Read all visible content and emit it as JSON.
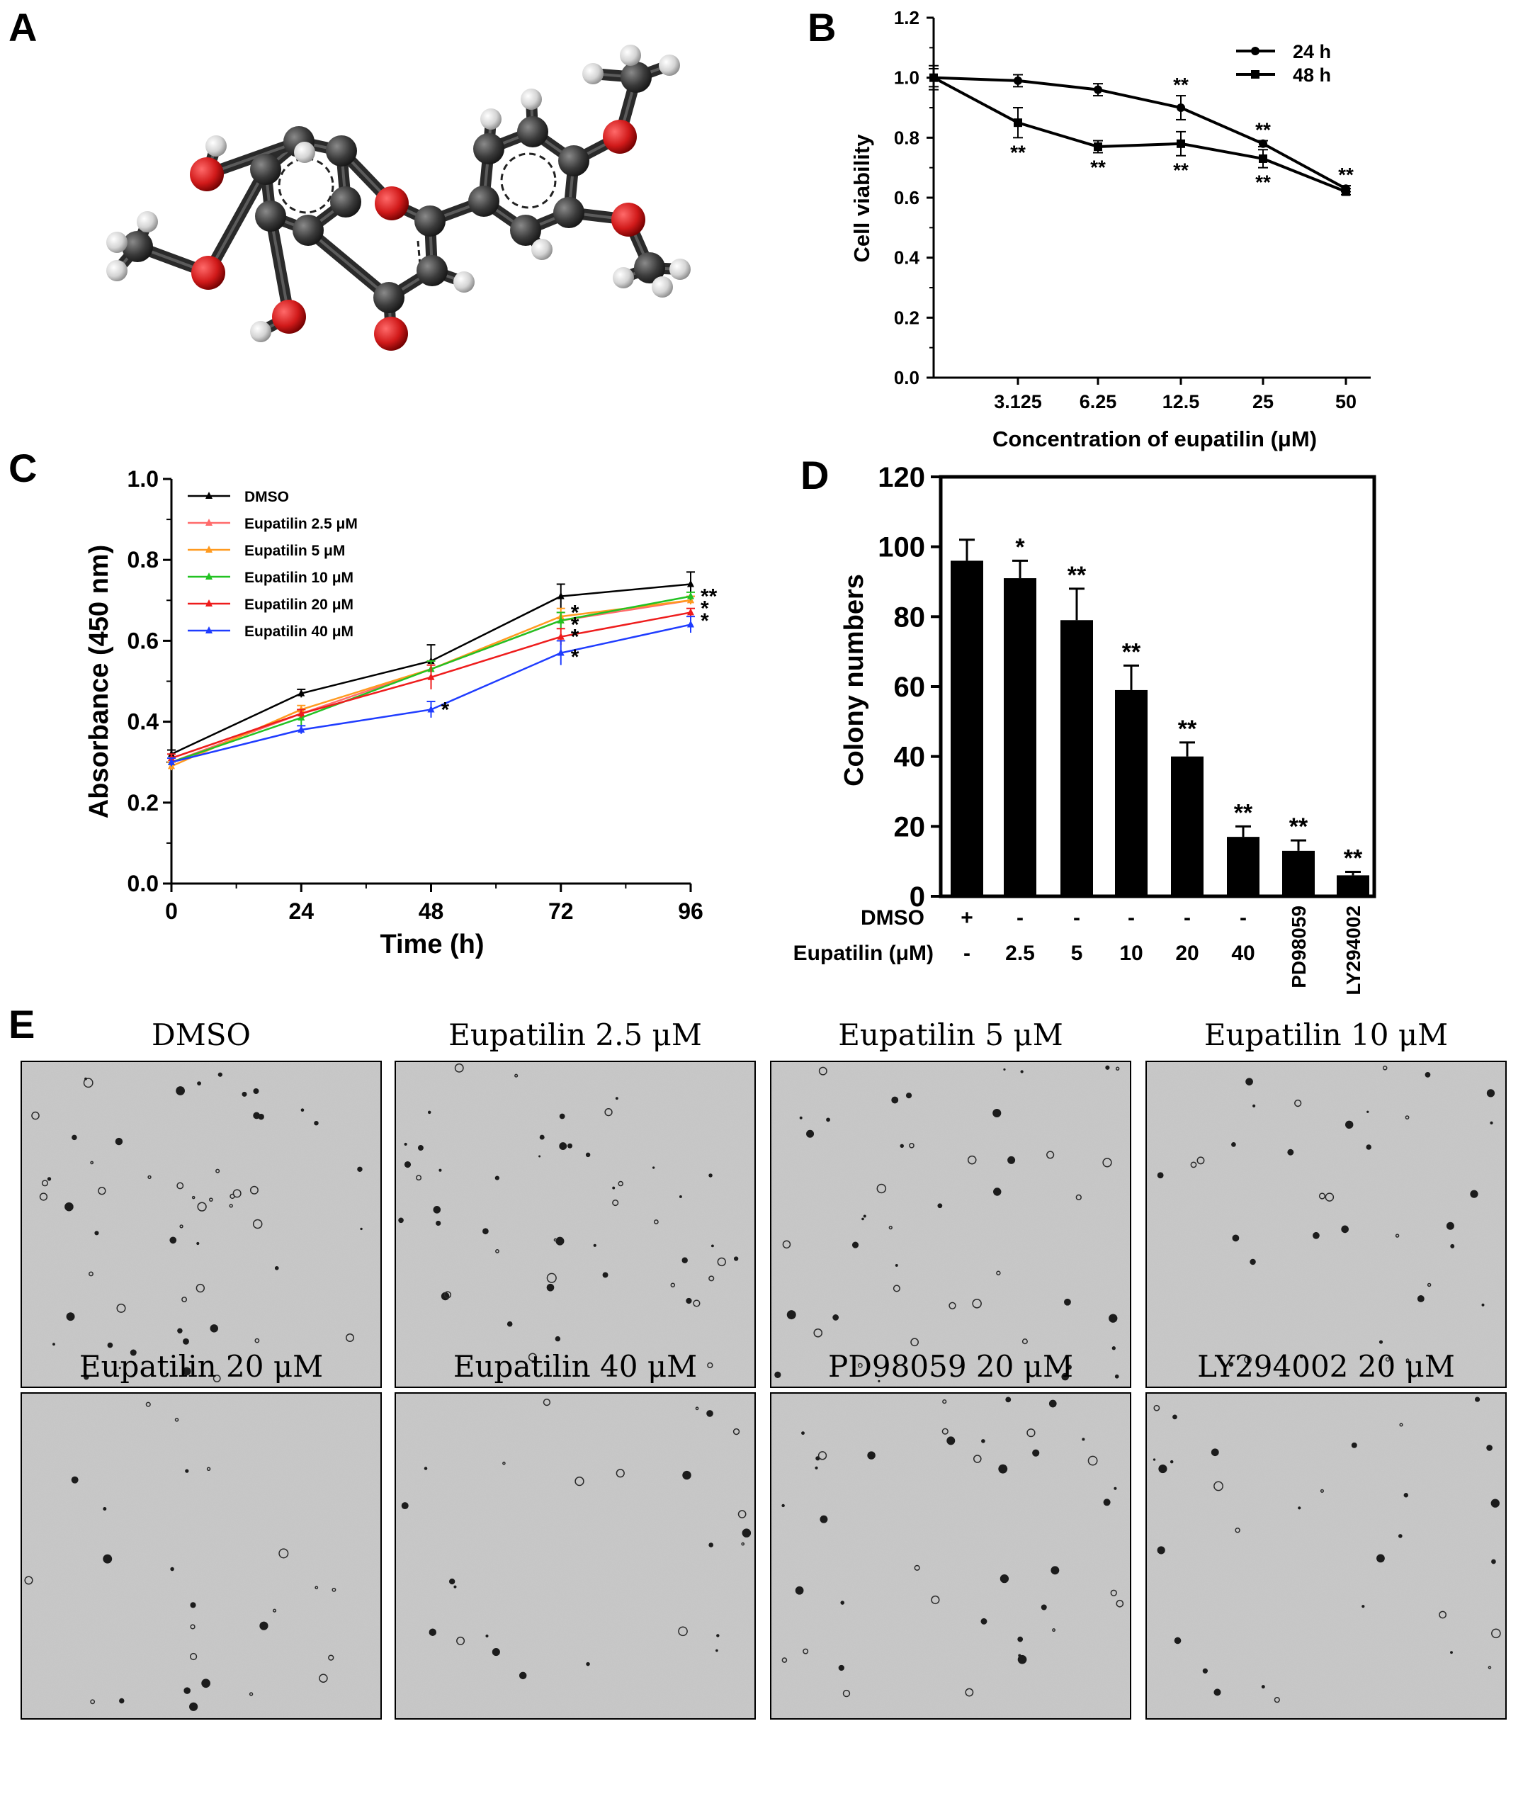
{
  "panels": {
    "A": {
      "letter": "A"
    },
    "B": {
      "letter": "B"
    },
    "C": {
      "letter": "C"
    },
    "D": {
      "letter": "D"
    },
    "E": {
      "letter": "E"
    }
  },
  "colors": {
    "carbon": "#3a3a3a",
    "oxygen": "#d11a1a",
    "hydrogen": "#d9d9d9",
    "DMSO": "#000000",
    "Eupatilin 2.5 μM": "#ff6b6b",
    "Eupatilin 5 μM": "#ff9a1f",
    "Eupatilin 10 μM": "#22c222",
    "Eupatilin 20 μM": "#ee1c1c",
    "Eupatilin 40 μM": "#1f3cff"
  },
  "chart_data": [
    {
      "panel": "B",
      "type": "line",
      "xlabel": "Concentration of eupatilin (μM)",
      "ylabel": "Cell viability",
      "ylim": [
        0,
        1.2
      ],
      "yticks": [
        "0.0",
        "0.2",
        "0.4",
        "0.6",
        "0.8",
        "1.0",
        "1.2"
      ],
      "categories": [
        "",
        "3.125",
        "6.25",
        "12.5",
        "25",
        "50"
      ],
      "legend_position": "top-right",
      "series": [
        {
          "name": "24 h",
          "values": [
            1.0,
            0.99,
            0.96,
            0.9,
            0.78,
            0.63
          ],
          "errors": [
            0.03,
            0.02,
            0.02,
            0.04,
            0.01,
            0.01
          ],
          "annotations": [
            "",
            "",
            "",
            "**",
            "**",
            "**"
          ]
        },
        {
          "name": "48 h",
          "values": [
            1.0,
            0.85,
            0.77,
            0.78,
            0.73,
            0.62
          ],
          "errors": [
            0.04,
            0.05,
            0.02,
            0.04,
            0.03,
            0.01
          ],
          "annotations": [
            "",
            "**",
            "**",
            "**",
            "**",
            ""
          ]
        }
      ]
    },
    {
      "panel": "C",
      "type": "line",
      "xlabel": "Time (h)",
      "ylabel": "Absorbance (450 nm)",
      "ylim": [
        0,
        1.0
      ],
      "yticks": [
        "0.0",
        "0.2",
        "0.4",
        "0.6",
        "0.8",
        "1.0"
      ],
      "x": [
        0,
        24,
        48,
        72,
        96
      ],
      "xticks": [
        "0",
        "24",
        "48",
        "72",
        "96"
      ],
      "legend_position": "top-left",
      "series": [
        {
          "name": "DMSO",
          "values": [
            0.32,
            0.47,
            0.55,
            0.71,
            0.74
          ],
          "errors": [
            0.01,
            0.01,
            0.04,
            0.03,
            0.03
          ]
        },
        {
          "name": "Eupatilin 2.5 μM",
          "values": [
            0.3,
            0.42,
            0.53,
            0.65,
            0.7
          ],
          "errors": [
            0.01,
            0.01,
            0.02,
            0.02,
            0.01
          ]
        },
        {
          "name": "Eupatilin 5 μM",
          "values": [
            0.29,
            0.43,
            0.53,
            0.66,
            0.7
          ],
          "errors": [
            0.01,
            0.01,
            0.02,
            0.02,
            0.01
          ]
        },
        {
          "name": "Eupatilin 10 μM",
          "values": [
            0.3,
            0.41,
            0.53,
            0.65,
            0.71
          ],
          "errors": [
            0.01,
            0.02,
            0.02,
            0.02,
            0.01
          ]
        },
        {
          "name": "Eupatilin 20 μM",
          "values": [
            0.31,
            0.42,
            0.51,
            0.61,
            0.67
          ],
          "errors": [
            0.01,
            0.01,
            0.03,
            0.02,
            0.01
          ]
        },
        {
          "name": "Eupatilin 40 μM",
          "values": [
            0.3,
            0.38,
            0.43,
            0.57,
            0.64
          ],
          "errors": [
            0.01,
            0.01,
            0.02,
            0.03,
            0.02
          ]
        }
      ],
      "annotations": [
        {
          "x": 48,
          "y": 0.43,
          "text": "*"
        },
        {
          "x": 72,
          "y": 0.67,
          "text": "*"
        },
        {
          "x": 72,
          "y": 0.64,
          "text": "*"
        },
        {
          "x": 72,
          "y": 0.61,
          "text": "*"
        },
        {
          "x": 72,
          "y": 0.56,
          "text": "*"
        },
        {
          "x": 96,
          "y": 0.71,
          "text": "**"
        },
        {
          "x": 96,
          "y": 0.68,
          "text": "*"
        },
        {
          "x": 96,
          "y": 0.65,
          "text": "*"
        }
      ]
    },
    {
      "panel": "D",
      "type": "bar",
      "ylabel": "Colony numbers",
      "ylim": [
        0,
        120
      ],
      "yticks": [
        "0",
        "20",
        "40",
        "60",
        "80",
        "100",
        "120"
      ],
      "values": [
        96,
        91,
        79,
        59,
        40,
        17,
        13,
        6
      ],
      "errors": [
        6,
        5,
        9,
        7,
        4,
        3,
        3,
        1
      ],
      "annotations": [
        "",
        "*",
        "**",
        "**",
        "**",
        "**",
        "**",
        "**"
      ],
      "row_labels": [
        "DMSO",
        "Eupatilin (μM)"
      ],
      "row1": [
        "+",
        "-",
        "-",
        "-",
        "-",
        "-",
        "",
        ""
      ],
      "row2": [
        "-",
        "2.5",
        "5",
        "10",
        "20",
        "40",
        "",
        ""
      ],
      "rotated_labels": [
        "",
        "",
        "",
        "",
        "",
        "",
        "PD98059",
        "LY294002"
      ]
    }
  ],
  "images": [
    {
      "title": "DMSO"
    },
    {
      "title": "Eupatilin 2.5 μM"
    },
    {
      "title": "Eupatilin 5 μM"
    },
    {
      "title": "Eupatilin 10 μM"
    },
    {
      "title": "Eupatilin 20 μM"
    },
    {
      "title": "Eupatilin 40 μM"
    },
    {
      "title": "PD98059 20 μM"
    },
    {
      "title": "LY294002 20 μM"
    }
  ]
}
